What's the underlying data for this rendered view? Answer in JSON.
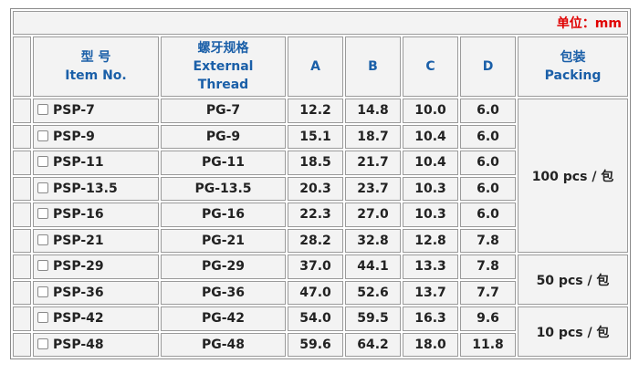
{
  "unit": "单位：mm",
  "columns": [
    [
      "型 号",
      "Item No."
    ],
    [
      "螺牙规格",
      "External",
      "Thread"
    ],
    [
      "A"
    ],
    [
      "B"
    ],
    [
      "C"
    ],
    [
      "D"
    ],
    [
      "包装",
      "Packing"
    ]
  ],
  "rows": [
    [
      "PSP-7",
      "PG-7",
      "12.2",
      "14.8",
      "10.0",
      "6.0"
    ],
    [
      "PSP-9",
      "PG-9",
      "15.1",
      "18.7",
      "10.4",
      "6.0"
    ],
    [
      "PSP-11",
      "PG-11",
      "18.5",
      "21.7",
      "10.4",
      "6.0"
    ],
    [
      "PSP-13.5",
      "PG-13.5",
      "20.3",
      "23.7",
      "10.3",
      "6.0"
    ],
    [
      "PSP-16",
      "PG-16",
      "22.3",
      "27.0",
      "10.3",
      "6.0"
    ],
    [
      "PSP-21",
      "PG-21",
      "28.2",
      "32.8",
      "12.8",
      "7.8"
    ],
    [
      "PSP-29",
      "PG-29",
      "37.0",
      "44.1",
      "13.3",
      "7.8"
    ],
    [
      "PSP-36",
      "PG-36",
      "47.0",
      "52.6",
      "13.7",
      "7.7"
    ],
    [
      "PSP-42",
      "PG-42",
      "54.0",
      "59.5",
      "16.3",
      "9.6"
    ],
    [
      "PSP-48",
      "PG-48",
      "59.6",
      "64.2",
      "18.0",
      "11.8"
    ]
  ],
  "packing": [
    "100 pcs / 包",
    "50 pcs / 包",
    "10 pcs / 包"
  ]
}
